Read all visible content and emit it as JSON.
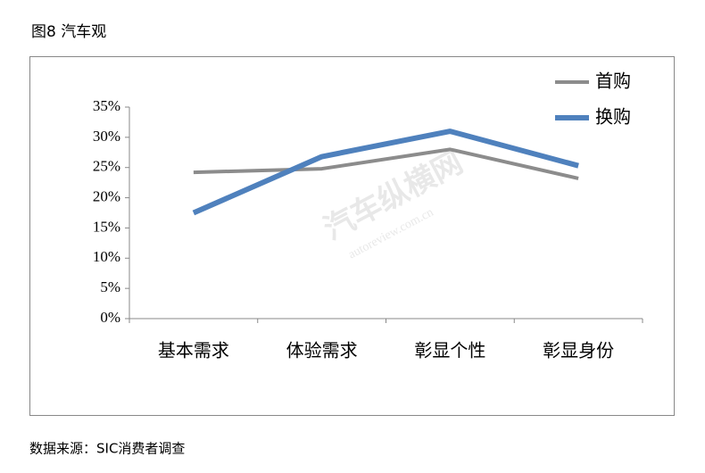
{
  "chart_data": {
    "type": "line",
    "title": "图8 汽车观",
    "categories": [
      "基本需求",
      "体验需求",
      "彰显个性",
      "彰显身份"
    ],
    "series": [
      {
        "name": "首购",
        "color": "#8c8c8c",
        "values": [
          24.2,
          24.8,
          28,
          23.2
        ]
      },
      {
        "name": "换购",
        "color": "#4f81bd",
        "values": [
          17.5,
          26.8,
          31,
          25.3
        ]
      }
    ],
    "ylim": [
      0,
      35
    ],
    "yticks": [
      {
        "value": 0,
        "label": "0%"
      },
      {
        "value": 5,
        "label": "5%"
      },
      {
        "value": 10,
        "label": "10%"
      },
      {
        "value": 15,
        "label": "15%"
      },
      {
        "value": 20,
        "label": "20%"
      },
      {
        "value": 25,
        "label": "25%"
      },
      {
        "value": 30,
        "label": "30%"
      },
      {
        "value": 35,
        "label": "35%"
      }
    ],
    "legend": "top-right",
    "watermark": [
      "汽车纵横网",
      "autoreview.com.cn"
    ],
    "source": "数据来源：SIC消费者调查"
  }
}
